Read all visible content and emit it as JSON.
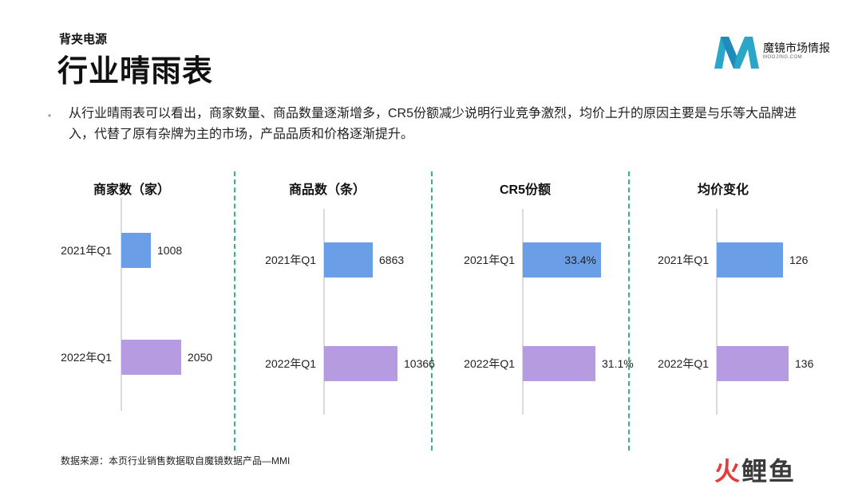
{
  "header": {
    "subtitle": "背夹电源",
    "title": "行业晴雨表"
  },
  "logo": {
    "name": "魔镜市场情报",
    "sub": "MOOJING.COM"
  },
  "bullet": "从行业晴雨表可以看出，商家数量、商品数量逐渐增多，CR5份额减少说明行业竞争激烈，均价上升的原因主要是与乐等大品牌进入，代替了原有杂牌为主的市场，产品品质和价格逐渐提升。",
  "source": "数据来源：本页行业销售数据取自魔镜数据产品—MMI",
  "watermark": {
    "part1": "火",
    "part2": "鲤鱼"
  },
  "colors": {
    "bar_2021": "#6a9ee6",
    "bar_2022": "#b79be0",
    "divider": "#2eb88a"
  },
  "chart_data": [
    {
      "type": "bar",
      "orientation": "horizontal",
      "title": "商家数（家）",
      "categories": [
        "2021年Q1",
        "2022年Q1"
      ],
      "values": [
        1008,
        2050
      ],
      "labels": [
        "1008",
        "2050"
      ],
      "label_position": "outside"
    },
    {
      "type": "bar",
      "orientation": "horizontal",
      "title": "商品数（条）",
      "categories": [
        "2021年Q1",
        "2022年Q1"
      ],
      "values": [
        6863,
        10366
      ],
      "labels": [
        "6863",
        "10366"
      ],
      "label_position": "outside"
    },
    {
      "type": "bar",
      "orientation": "horizontal",
      "title": "CR5份额",
      "categories": [
        "2021年Q1",
        "2022年Q1"
      ],
      "values": [
        33.4,
        31.1
      ],
      "labels": [
        "33.4%",
        "31.1%"
      ],
      "label_position": "mixed"
    },
    {
      "type": "bar",
      "orientation": "horizontal",
      "title": "均价变化",
      "categories": [
        "2021年Q1",
        "2022年Q1"
      ],
      "values": [
        126,
        136
      ],
      "labels": [
        "126",
        "136"
      ],
      "label_position": "outside"
    }
  ]
}
